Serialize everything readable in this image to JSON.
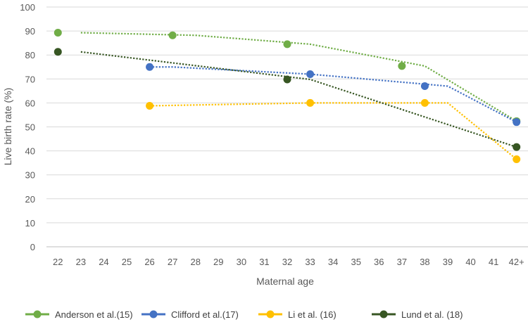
{
  "chart_data": {
    "type": "line",
    "title": "",
    "xlabel": "Maternal age",
    "ylabel": "Live birth rate (%)",
    "categories": [
      "22",
      "23",
      "24",
      "25",
      "26",
      "27",
      "28",
      "29",
      "30",
      "31",
      "32",
      "33",
      "34",
      "35",
      "36",
      "37",
      "38",
      "39",
      "40",
      "41",
      "42+"
    ],
    "ylim": [
      0,
      100
    ],
    "yticks": [
      0,
      10,
      20,
      30,
      40,
      50,
      60,
      70,
      80,
      90,
      100
    ],
    "grid": "horizontal",
    "legend_position": "bottom",
    "series": [
      {
        "name": "Anderson et al.(15)",
        "color": "#70ad47",
        "points": [
          [
            "22",
            89.3
          ],
          [
            "27",
            88.2
          ],
          [
            "32",
            84.5
          ],
          [
            "37",
            75.4
          ],
          [
            "42+",
            52.4
          ]
        ],
        "trendline": [
          [
            "23",
            89.3
          ],
          [
            "28",
            88.2
          ],
          [
            "33",
            84.5
          ],
          [
            "38",
            75.4
          ],
          [
            "42+",
            52.4
          ]
        ]
      },
      {
        "name": "Clifford et al.(17)",
        "color": "#4472c4",
        "points": [
          [
            "26",
            75.0
          ],
          [
            "33",
            72.0
          ],
          [
            "38",
            67.0
          ],
          [
            "42+",
            52.0
          ]
        ],
        "trendline": [
          [
            "26",
            75.0
          ],
          [
            "27",
            75.0
          ],
          [
            "33",
            72.0
          ],
          [
            "39",
            67.0
          ],
          [
            "42+",
            52.0
          ]
        ]
      },
      {
        "name": "Li et al. (16)",
        "color": "#ffc000",
        "points": [
          [
            "26",
            58.8
          ],
          [
            "33",
            60.0
          ],
          [
            "38",
            60.0
          ],
          [
            "42+",
            36.5
          ]
        ],
        "trendline": [
          [
            "26",
            58.8
          ],
          [
            "33",
            60.0
          ],
          [
            "39",
            60.0
          ],
          [
            "42+",
            36.5
          ]
        ]
      },
      {
        "name": "Lund et al. (18)",
        "color": "#375623",
        "points": [
          [
            "22",
            81.3
          ],
          [
            "32",
            69.8
          ],
          [
            "42+",
            41.6
          ]
        ],
        "trendline": [
          [
            "23",
            81.3
          ],
          [
            "33",
            69.8
          ],
          [
            "42+",
            41.6
          ]
        ]
      }
    ]
  }
}
